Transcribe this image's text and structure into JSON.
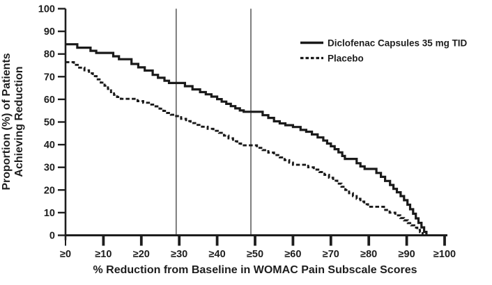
{
  "colors": {
    "ink": "#1d1d1d",
    "curve": "#1a1a1a",
    "reference_line": "#2b2b2b",
    "background": "#ffffff"
  },
  "chart_data": {
    "type": "line",
    "subtype": "step",
    "title": "",
    "xlabel": "% Reduction from Baseline in WOMAC Pain Subscale Scores",
    "ylabel": "Proportion (%) of Patients Achieving Reduction",
    "ylabel_lines": [
      "Proportion (%) of Patients",
      "Achieving Reduction"
    ],
    "xlim": [
      0,
      100
    ],
    "ylim": [
      0,
      100
    ],
    "grid": false,
    "legend_position": "upper right",
    "x_tick_values": [
      0,
      10,
      20,
      30,
      40,
      50,
      60,
      70,
      80,
      90,
      100
    ],
    "x_tick_labels": [
      "≥0",
      "≥10",
      "≥20",
      "≥30",
      "≥40",
      "≥50",
      "≥60",
      "≥70",
      "≥80",
      "≥90",
      "≥100"
    ],
    "y_tick_values": [
      0,
      10,
      20,
      30,
      40,
      50,
      60,
      70,
      80,
      90,
      100
    ],
    "y_tick_labels": [
      "0",
      "10",
      "20",
      "30",
      "40",
      "50",
      "60",
      "70",
      "80",
      "90",
      "100"
    ],
    "reference_lines_x": [
      29.2,
      48.9
    ],
    "series": [
      {
        "name": "Diclofenac Capsules 35 mg TID",
        "line_style": "solid",
        "color": "#1a1a1a",
        "points": [
          [
            0,
            84.3
          ],
          [
            3.1,
            82.8
          ],
          [
            6.6,
            81.4
          ],
          [
            8.1,
            80.5
          ],
          [
            12.6,
            79.0
          ],
          [
            14.1,
            77.7
          ],
          [
            17.4,
            75.6
          ],
          [
            19.2,
            74.1
          ],
          [
            20.9,
            72.7
          ],
          [
            23.0,
            70.8
          ],
          [
            24.4,
            69.5
          ],
          [
            26.1,
            68.2
          ],
          [
            27.3,
            67.2
          ],
          [
            31.5,
            65.8
          ],
          [
            33.5,
            64.4
          ],
          [
            35.5,
            63.2
          ],
          [
            37.0,
            62.2
          ],
          [
            38.5,
            61.2
          ],
          [
            40.0,
            60.1
          ],
          [
            41.2,
            59.0
          ],
          [
            42.4,
            58.0
          ],
          [
            43.6,
            57.0
          ],
          [
            44.8,
            56.0
          ],
          [
            46.0,
            55.1
          ],
          [
            47.0,
            54.5
          ],
          [
            52.0,
            53.0
          ],
          [
            53.5,
            51.8
          ],
          [
            55.0,
            50.3
          ],
          [
            56.5,
            49.4
          ],
          [
            58.0,
            48.6
          ],
          [
            60.0,
            47.8
          ],
          [
            62.0,
            46.5
          ],
          [
            63.5,
            45.7
          ],
          [
            65.0,
            44.5
          ],
          [
            66.5,
            43.2
          ],
          [
            68.0,
            41.8
          ],
          [
            69.0,
            40.5
          ],
          [
            70.0,
            39.3
          ],
          [
            71.0,
            38.0
          ],
          [
            72.0,
            36.6
          ],
          [
            73.0,
            35.0
          ],
          [
            73.7,
            33.7
          ],
          [
            76.8,
            31.8
          ],
          [
            77.8,
            30.4
          ],
          [
            78.9,
            29.3
          ],
          [
            82.0,
            27.5
          ],
          [
            83.2,
            25.8
          ],
          [
            84.3,
            24.0
          ],
          [
            85.6,
            22.2
          ],
          [
            86.5,
            20.5
          ],
          [
            87.4,
            19.0
          ],
          [
            88.4,
            17.3
          ],
          [
            89.3,
            15.5
          ],
          [
            90.2,
            13.5
          ],
          [
            90.9,
            11.5
          ],
          [
            91.7,
            9.5
          ],
          [
            92.4,
            7.5
          ],
          [
            93.1,
            5.5
          ],
          [
            93.9,
            3.5
          ],
          [
            94.6,
            1.5
          ],
          [
            95.2,
            0
          ]
        ]
      },
      {
        "name": "Placebo",
        "line_style": "dashed",
        "color": "#1a1a1a",
        "points": [
          [
            0,
            76.4
          ],
          [
            2.2,
            75.2
          ],
          [
            3.6,
            74.0
          ],
          [
            5.0,
            72.8
          ],
          [
            6.2,
            71.5
          ],
          [
            7.2,
            70.2
          ],
          [
            8.2,
            68.8
          ],
          [
            9.3,
            67.4
          ],
          [
            10.3,
            66.0
          ],
          [
            11.2,
            64.6
          ],
          [
            12.0,
            63.2
          ],
          [
            12.8,
            62.0
          ],
          [
            13.6,
            61.0
          ],
          [
            14.6,
            60.2
          ],
          [
            19.0,
            59.2
          ],
          [
            20.5,
            58.5
          ],
          [
            22.0,
            57.7
          ],
          [
            23.5,
            56.9
          ],
          [
            24.8,
            55.9
          ],
          [
            25.8,
            54.9
          ],
          [
            26.8,
            54.0
          ],
          [
            27.8,
            53.2
          ],
          [
            28.8,
            52.6
          ],
          [
            30.5,
            51.4
          ],
          [
            31.8,
            50.4
          ],
          [
            33.0,
            49.5
          ],
          [
            34.5,
            48.7
          ],
          [
            36.0,
            47.9
          ],
          [
            37.5,
            47.0
          ],
          [
            39.0,
            46.1
          ],
          [
            40.5,
            45.2
          ],
          [
            41.8,
            44.0
          ],
          [
            43.0,
            42.8
          ],
          [
            44.2,
            41.5
          ],
          [
            45.3,
            40.5
          ],
          [
            46.3,
            39.7
          ],
          [
            50.5,
            38.6
          ],
          [
            52.0,
            37.6
          ],
          [
            53.5,
            36.5
          ],
          [
            55.0,
            35.4
          ],
          [
            56.5,
            34.4
          ],
          [
            57.8,
            33.2
          ],
          [
            59.0,
            32.1
          ],
          [
            60.0,
            31.1
          ],
          [
            64.0,
            30.0
          ],
          [
            65.5,
            29.0
          ],
          [
            67.0,
            27.9
          ],
          [
            68.3,
            26.7
          ],
          [
            69.5,
            25.4
          ],
          [
            70.6,
            24.1
          ],
          [
            71.7,
            22.8
          ],
          [
            72.8,
            21.4
          ],
          [
            73.8,
            20.0
          ],
          [
            74.8,
            18.6
          ],
          [
            75.8,
            17.3
          ],
          [
            76.8,
            16.1
          ],
          [
            77.8,
            14.9
          ],
          [
            78.8,
            13.7
          ],
          [
            79.8,
            12.6
          ],
          [
            84.0,
            11.2
          ],
          [
            85.5,
            10.0
          ],
          [
            87.0,
            8.8
          ],
          [
            88.3,
            7.6
          ],
          [
            89.3,
            6.6
          ],
          [
            90.3,
            5.4
          ],
          [
            91.2,
            4.4
          ],
          [
            92.0,
            3.4
          ],
          [
            92.8,
            2.4
          ],
          [
            93.5,
            1.4
          ],
          [
            94.2,
            0.3
          ]
        ]
      }
    ]
  }
}
